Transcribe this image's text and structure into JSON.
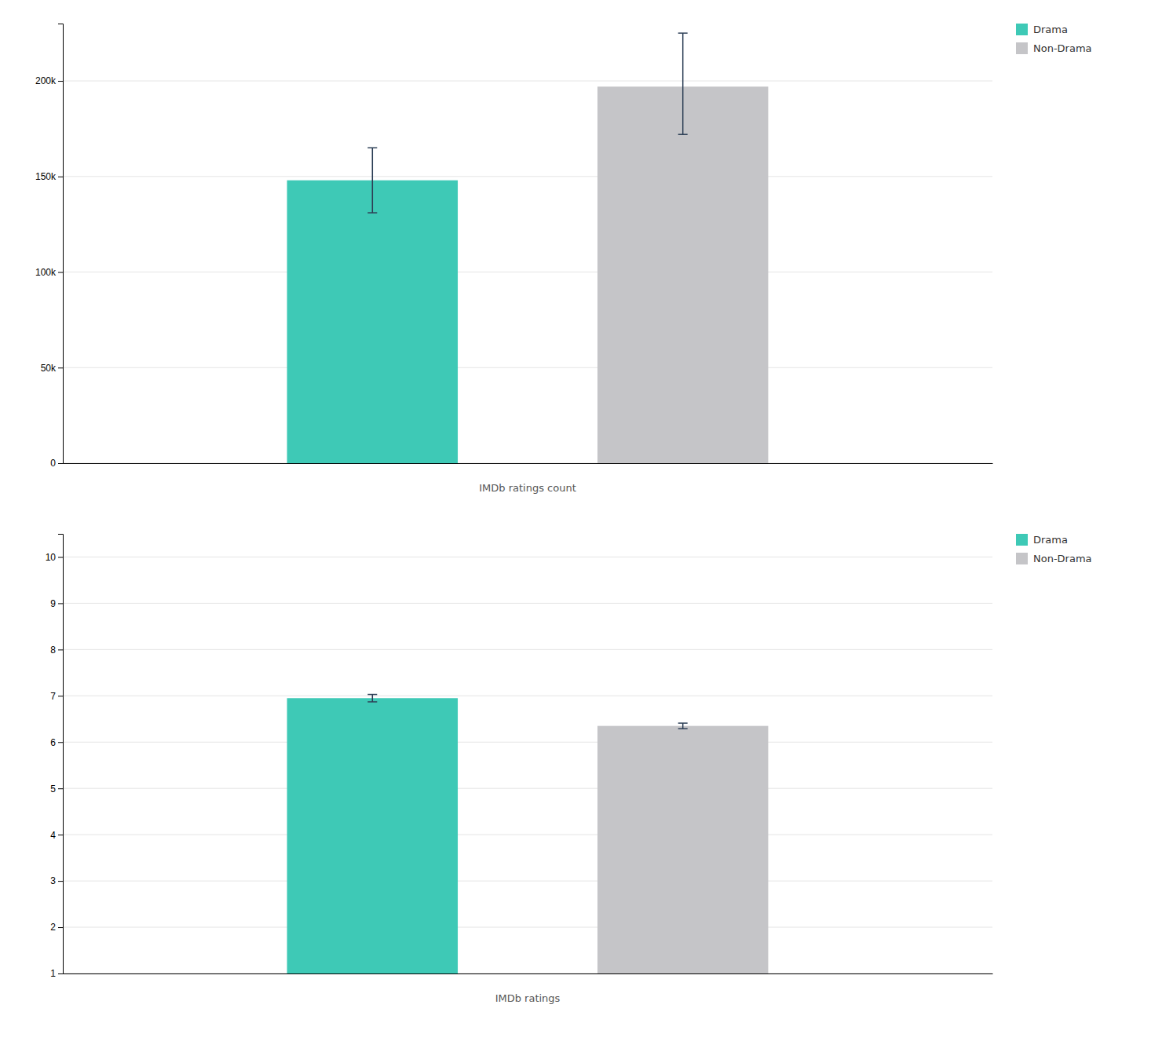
{
  "chart_data": [
    {
      "type": "bar",
      "x_label": "IMDb ratings count",
      "categories": [
        null
      ],
      "series": [
        {
          "name": "Drama",
          "color": "#3ec9b6",
          "values": [
            148000
          ],
          "error_low": [
            17000
          ],
          "error_high": [
            17000
          ]
        },
        {
          "name": "Non-Drama",
          "color": "#c5c5c8",
          "values": [
            197000
          ],
          "error_low": [
            25000
          ],
          "error_high": [
            28000
          ]
        }
      ],
      "ylim": [
        0,
        230000
      ],
      "yticks": [
        0,
        {
          "value": 50000,
          "label": "50k"
        },
        {
          "value": 100000,
          "label": "100k"
        },
        {
          "value": 150000,
          "label": "150k"
        },
        {
          "value": 200000,
          "label": "200k"
        }
      ],
      "grid": true,
      "legend": "upper right"
    },
    {
      "type": "bar",
      "x_label": "IMDb ratings",
      "categories": [
        null
      ],
      "series": [
        {
          "name": "Drama",
          "color": "#3ec9b6",
          "values": [
            6.95
          ],
          "error_low": [
            0.08
          ],
          "error_high": [
            0.08
          ]
        },
        {
          "name": "Non-Drama",
          "color": "#c5c5c8",
          "values": [
            6.35
          ],
          "error_low": [
            0.06
          ],
          "error_high": [
            0.06
          ]
        }
      ],
      "ylim": [
        1,
        10.5
      ],
      "yticks": [
        1,
        2,
        3,
        4,
        5,
        6,
        7,
        8,
        9,
        10
      ],
      "grid": true,
      "legend": "upper right"
    }
  ]
}
